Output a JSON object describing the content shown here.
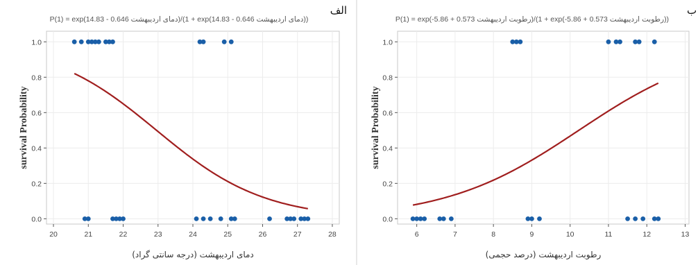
{
  "chart_data": [
    {
      "type": "scatter",
      "panel_label": "الف",
      "title": "P(1) = exp(14.83 - 0.646 دمای اردیبهشت)/(1 + exp(14.83 - 0.646 دمای اردیبهشت))",
      "xlabel": "دمای اردیبهشت (درجه سانتی گراد)",
      "ylabel": "survival Probability",
      "xlim": [
        19.8,
        28.2
      ],
      "ylim": [
        -0.03,
        1.06
      ],
      "xticks": [
        20,
        21,
        22,
        23,
        24,
        25,
        26,
        27,
        28
      ],
      "yticks": [
        0.0,
        0.2,
        0.4,
        0.6,
        0.8,
        1.0
      ],
      "grid": true,
      "points_color": "#1a5fa8",
      "curve_color": "#a01e1e",
      "curve": {
        "intercept": 14.83,
        "slope": -0.646,
        "x_range": [
          20.6,
          27.3
        ]
      },
      "points": [
        {
          "x": 20.6,
          "y": 1
        },
        {
          "x": 20.8,
          "y": 1
        },
        {
          "x": 21.0,
          "y": 1
        },
        {
          "x": 21.1,
          "y": 1
        },
        {
          "x": 21.2,
          "y": 1
        },
        {
          "x": 21.3,
          "y": 1
        },
        {
          "x": 21.5,
          "y": 1
        },
        {
          "x": 21.6,
          "y": 1
        },
        {
          "x": 21.7,
          "y": 1
        },
        {
          "x": 24.2,
          "y": 1
        },
        {
          "x": 24.3,
          "y": 1
        },
        {
          "x": 24.9,
          "y": 1
        },
        {
          "x": 25.1,
          "y": 1
        },
        {
          "x": 20.9,
          "y": 0
        },
        {
          "x": 21.0,
          "y": 0
        },
        {
          "x": 21.7,
          "y": 0
        },
        {
          "x": 21.8,
          "y": 0
        },
        {
          "x": 21.9,
          "y": 0
        },
        {
          "x": 22.0,
          "y": 0
        },
        {
          "x": 24.1,
          "y": 0
        },
        {
          "x": 24.3,
          "y": 0
        },
        {
          "x": 24.5,
          "y": 0
        },
        {
          "x": 24.8,
          "y": 0
        },
        {
          "x": 25.1,
          "y": 0
        },
        {
          "x": 25.2,
          "y": 0
        },
        {
          "x": 26.2,
          "y": 0
        },
        {
          "x": 26.7,
          "y": 0
        },
        {
          "x": 26.8,
          "y": 0
        },
        {
          "x": 26.9,
          "y": 0
        },
        {
          "x": 27.1,
          "y": 0
        },
        {
          "x": 27.2,
          "y": 0
        },
        {
          "x": 27.3,
          "y": 0
        }
      ]
    },
    {
      "type": "scatter",
      "panel_label": "ب",
      "title": "P(1) = exp(-5.86 + 0.573 رطوبت اردیبهشت)/(1 + exp(-5.86 + 0.573 رطوبت اردیبهشت))",
      "xlabel": "رطوبت اردیبهشت (درصد حجمی)",
      "ylabel": "survival Probability",
      "xlim": [
        5.5,
        13.1
      ],
      "ylim": [
        -0.03,
        1.06
      ],
      "xticks": [
        6,
        7,
        8,
        9,
        10,
        11,
        12,
        13
      ],
      "yticks": [
        0.0,
        0.2,
        0.4,
        0.6,
        0.8,
        1.0
      ],
      "grid": true,
      "points_color": "#1a5fa8",
      "curve_color": "#a01e1e",
      "curve": {
        "intercept": -5.86,
        "slope": 0.573,
        "x_range": [
          5.9,
          12.3
        ]
      },
      "points": [
        {
          "x": 8.5,
          "y": 1
        },
        {
          "x": 8.6,
          "y": 1
        },
        {
          "x": 8.7,
          "y": 1
        },
        {
          "x": 11.0,
          "y": 1
        },
        {
          "x": 11.2,
          "y": 1
        },
        {
          "x": 11.3,
          "y": 1
        },
        {
          "x": 11.7,
          "y": 1
        },
        {
          "x": 11.8,
          "y": 1
        },
        {
          "x": 12.2,
          "y": 1
        },
        {
          "x": 5.9,
          "y": 0
        },
        {
          "x": 6.0,
          "y": 0
        },
        {
          "x": 6.1,
          "y": 0
        },
        {
          "x": 6.2,
          "y": 0
        },
        {
          "x": 6.6,
          "y": 0
        },
        {
          "x": 6.7,
          "y": 0
        },
        {
          "x": 6.9,
          "y": 0
        },
        {
          "x": 8.9,
          "y": 0
        },
        {
          "x": 9.0,
          "y": 0
        },
        {
          "x": 9.2,
          "y": 0
        },
        {
          "x": 11.5,
          "y": 0
        },
        {
          "x": 11.7,
          "y": 0
        },
        {
          "x": 11.9,
          "y": 0
        },
        {
          "x": 12.2,
          "y": 0
        },
        {
          "x": 12.3,
          "y": 0
        }
      ]
    }
  ]
}
